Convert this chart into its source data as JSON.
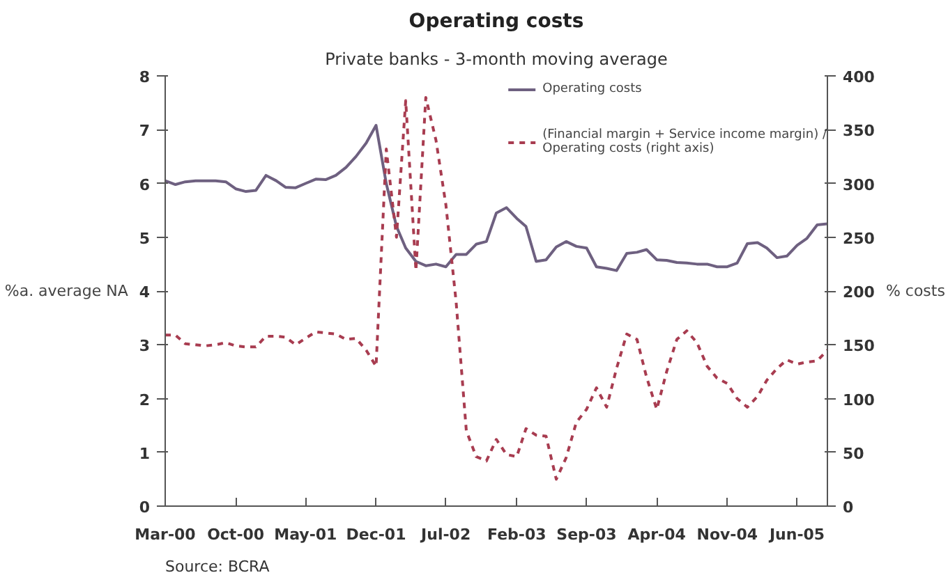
{
  "chart_data": {
    "type": "line",
    "title": "Operating costs",
    "subtitle": "Private banks - 3-month moving average",
    "ylabel": "%a. average NA",
    "y2label": "% costs",
    "annotations": [
      "Source: BCRA"
    ],
    "x": [
      "2000-03",
      "2000-04",
      "2000-05",
      "2000-06",
      "2000-07",
      "2000-08",
      "2000-09",
      "2000-10",
      "2000-11",
      "2000-12",
      "2001-01",
      "2001-02",
      "2001-03",
      "2001-04",
      "2001-05",
      "2001-06",
      "2001-07",
      "2001-08",
      "2001-09",
      "2001-10",
      "2001-11",
      "2001-12",
      "2002-01",
      "2002-02",
      "2002-03",
      "2002-04",
      "2002-05",
      "2002-06",
      "2002-07",
      "2002-08",
      "2002-09",
      "2002-10",
      "2002-11",
      "2002-12",
      "2003-01",
      "2003-02",
      "2003-03",
      "2003-04",
      "2003-05",
      "2003-06",
      "2003-07",
      "2003-08",
      "2003-09",
      "2003-10",
      "2003-11",
      "2003-12",
      "2004-01",
      "2004-02",
      "2004-03",
      "2004-04",
      "2004-05",
      "2004-06",
      "2004-07",
      "2004-08",
      "2004-09",
      "2004-10",
      "2004-11",
      "2004-12",
      "2005-01",
      "2005-02",
      "2005-03",
      "2005-04",
      "2005-05",
      "2005-06",
      "2005-07",
      "2005-08",
      "2005-09"
    ],
    "series": [
      {
        "name": "Operating costs",
        "color": "#6e6080",
        "line_style": "solid",
        "values": [
          6.05,
          5.98,
          6.03,
          6.05,
          6.05,
          6.05,
          6.03,
          5.9,
          5.85,
          5.87,
          6.15,
          6.05,
          5.93,
          5.92,
          6.0,
          6.08,
          6.07,
          6.15,
          6.3,
          6.5,
          6.75,
          7.08,
          6.0,
          5.2,
          4.8,
          4.55,
          4.47,
          4.5,
          4.45,
          4.68,
          4.68,
          4.87,
          4.92,
          5.45,
          5.55,
          5.35,
          5.2,
          4.55,
          4.58,
          4.82,
          4.92,
          4.83,
          4.8,
          4.45,
          4.42,
          4.38,
          4.7,
          4.72,
          4.77,
          4.58,
          4.57,
          4.53,
          4.52,
          4.5,
          4.5,
          4.45,
          4.45,
          4.52,
          4.88,
          4.9,
          4.8,
          4.62,
          4.65,
          4.85,
          4.98,
          5.23,
          5.25
        ]
      },
      {
        "name": "(Financial margin + Service income margin) /\nOperating costs (right axis)",
        "color": "#a83c50",
        "line_style": "dashed",
        "axis": "y2",
        "values": [
          159,
          159,
          151,
          150,
          149,
          150,
          152,
          149,
          148,
          148,
          158,
          158,
          157,
          150,
          156,
          162,
          161,
          160,
          155,
          156,
          145,
          130,
          332,
          250,
          377,
          219,
          380,
          340,
          280,
          190,
          70,
          46,
          42,
          62,
          48,
          46,
          72,
          66,
          65,
          25,
          45,
          78,
          90,
          110,
          92,
          128,
          160,
          155,
          120,
          90,
          125,
          155,
          163,
          152,
          130,
          119,
          114,
          100,
          92,
          102,
          117,
          128,
          136,
          132,
          134,
          135,
          145
        ]
      }
    ],
    "xlim": [
      "2000-03",
      "2005-09"
    ],
    "xticks": [
      {
        "value": "2000-03",
        "label": "Mar-00"
      },
      {
        "value": "2000-10",
        "label": "Oct-00"
      },
      {
        "value": "2001-05",
        "label": "May-01"
      },
      {
        "value": "2001-12",
        "label": "Dec-01"
      },
      {
        "value": "2002-07",
        "label": "Jul-02"
      },
      {
        "value": "2003-02",
        "label": "Feb-03"
      },
      {
        "value": "2003-09",
        "label": "Sep-03"
      },
      {
        "value": "2004-04",
        "label": "Apr-04"
      },
      {
        "value": "2004-11",
        "label": "Nov-04"
      },
      {
        "value": "2005-06",
        "label": "Jun-05"
      }
    ],
    "ylim": [
      0,
      8
    ],
    "yticks": [
      0,
      1,
      2,
      3,
      4,
      5,
      6,
      7,
      8
    ],
    "y2lim": [
      0,
      400
    ],
    "y2ticks": [
      0,
      50,
      100,
      150,
      200,
      250,
      300,
      350,
      400
    ],
    "grid": false,
    "legend": "top right"
  }
}
